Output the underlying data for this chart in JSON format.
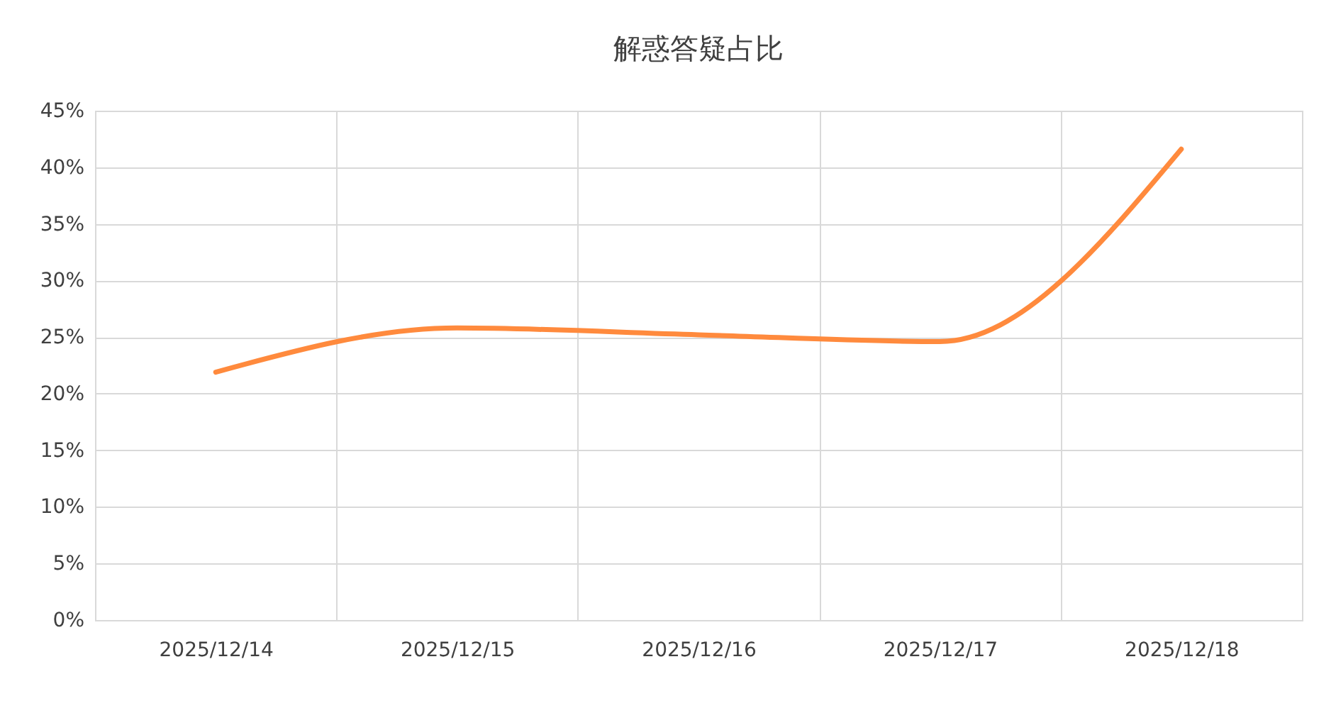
{
  "chart_data": {
    "type": "line",
    "title": "解惑答疑占比",
    "categories": [
      "2025/12/14",
      "2025/12/15",
      "2025/12/16",
      "2025/12/17",
      "2025/12/18"
    ],
    "series": [
      {
        "color": "#ff8a3d",
        "values": [
          21.9,
          25.8,
          25.2,
          24.6,
          41.6
        ]
      }
    ],
    "ylim": [
      0,
      45
    ],
    "yticks": [
      {
        "value": 0,
        "label": "0%"
      },
      {
        "value": 5,
        "label": "5%"
      },
      {
        "value": 10,
        "label": "10%"
      },
      {
        "value": 15,
        "label": "15%"
      },
      {
        "value": 20,
        "label": "20%"
      },
      {
        "value": 25,
        "label": "25%"
      },
      {
        "value": 30,
        "label": "30%"
      },
      {
        "value": 35,
        "label": "35%"
      },
      {
        "value": 40,
        "label": "40%"
      },
      {
        "value": 45,
        "label": "45%"
      }
    ],
    "grid": true
  }
}
